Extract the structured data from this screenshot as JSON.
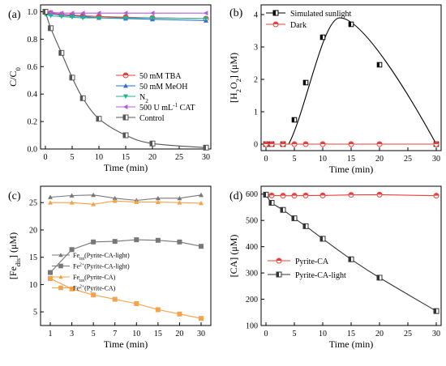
{
  "chart_data": [
    {
      "panel": "(a)",
      "type": "line",
      "xlabel": "Time (min)",
      "ylabel_parts": [
        "C/C",
        "0"
      ],
      "xlim": [
        0,
        30
      ],
      "ylim": [
        0,
        1.05
      ],
      "xticks": [
        0,
        5,
        10,
        15,
        20,
        25,
        30
      ],
      "yticks": [
        0.0,
        0.2,
        0.4,
        0.6,
        0.8,
        1.0
      ],
      "legend_position": "center-right",
      "series": [
        {
          "name": "50 mM TBA",
          "color": "#e8403a",
          "marker": "circle-half",
          "x": [
            0,
            1,
            3,
            5,
            7,
            10,
            15,
            20,
            30
          ],
          "y": [
            1.0,
            0.99,
            0.98,
            0.975,
            0.97,
            0.965,
            0.96,
            0.955,
            0.95
          ]
        },
        {
          "name": "50 mM MeOH",
          "color": "#2f6fd1",
          "marker": "triangle-up",
          "x": [
            0,
            1,
            3,
            5,
            7,
            10,
            15,
            20,
            30
          ],
          "y": [
            1.0,
            0.985,
            0.975,
            0.97,
            0.965,
            0.955,
            0.95,
            0.945,
            0.935
          ]
        },
        {
          "name": "N2",
          "name_parts": [
            "N",
            "2"
          ],
          "color": "#1fb58a",
          "marker": "triangle-down",
          "x": [
            0,
            1,
            3,
            5,
            7,
            10,
            15,
            20,
            30
          ],
          "y": [
            0.98,
            0.97,
            0.965,
            0.96,
            0.955,
            0.955,
            0.955,
            0.955,
            0.95
          ]
        },
        {
          "name": "500 U mL-1 CAT",
          "name_parts": [
            "500 U mL",
            "-1",
            " CAT"
          ],
          "color": "#b45ce0",
          "marker": "triangle-left",
          "x": [
            0,
            1,
            3,
            5,
            7,
            10,
            15,
            20,
            30
          ],
          "y": [
            1.0,
            0.995,
            0.99,
            0.99,
            0.99,
            0.99,
            0.99,
            0.99,
            0.99
          ]
        },
        {
          "name": "Control",
          "color": "#555555",
          "marker": "square-half",
          "x": [
            0,
            1,
            3,
            5,
            7,
            10,
            15,
            20,
            30
          ],
          "y": [
            1.0,
            0.88,
            0.7,
            0.52,
            0.37,
            0.22,
            0.1,
            0.04,
            0.01
          ]
        }
      ]
    },
    {
      "panel": "(b)",
      "type": "line",
      "xlabel": "Time (min)",
      "ylabel_parts": [
        "[H",
        "2",
        "O",
        "2",
        "] (μM)"
      ],
      "xlim": [
        0,
        30
      ],
      "ylim": [
        -0.2,
        4.3
      ],
      "xticks": [
        0,
        5,
        10,
        15,
        20,
        25,
        30
      ],
      "yticks": [
        0,
        1,
        2,
        3,
        4
      ],
      "legend_position": "top-left",
      "series": [
        {
          "name": "Simulated sunlight",
          "color": "#000000",
          "marker": "square-half",
          "x": [
            0,
            1,
            3,
            5,
            7,
            10,
            15,
            20,
            30
          ],
          "y": [
            0,
            0,
            0,
            0.75,
            1.9,
            3.3,
            3.7,
            2.45,
            0
          ]
        },
        {
          "name": "Dark",
          "color": "#e8403a",
          "marker": "circle-half",
          "x": [
            0,
            1,
            3,
            5,
            7,
            10,
            15,
            20,
            30
          ],
          "y": [
            0,
            0,
            0,
            0,
            0,
            0,
            0,
            0,
            0
          ]
        }
      ]
    },
    {
      "panel": "(c)",
      "type": "line",
      "xlabel": "Time (min)",
      "ylabel_parts": [
        "[Fe",
        "dis",
        "] (μM)"
      ],
      "categories": [
        "1",
        "3",
        "5",
        "7",
        "10",
        "15",
        "20",
        "30"
      ],
      "ylim": [
        2.5,
        28
      ],
      "yticks": [
        5,
        10,
        15,
        20,
        25
      ],
      "legend_position": "center-right",
      "series": [
        {
          "name": "Fetot(Pyrite-CA-light)",
          "name_parts": [
            "Fe",
            "tot",
            "(Pyrite-CA-light)"
          ],
          "color": "#777777",
          "marker": "triangle-up",
          "values": [
            26.0,
            26.3,
            26.4,
            25.8,
            25.4,
            25.8,
            25.8,
            26.4
          ]
        },
        {
          "name": "Fe2+(Pyrite-CA-light)",
          "name_parts": [
            "Fe",
            "2+",
            "(Pyrite-CA-light)"
          ],
          "color": "#777777",
          "marker": "square",
          "values": [
            12.2,
            16.4,
            17.8,
            17.9,
            18.2,
            18.1,
            17.8,
            17.0
          ]
        },
        {
          "name": "Fetot(Pyrite-CA)",
          "name_parts": [
            "Fe",
            "tot",
            "(Pyrite-CA)"
          ],
          "color": "#f5a24a",
          "marker": "triangle-up",
          "values": [
            25.0,
            25.0,
            24.7,
            25.3,
            25.1,
            25.1,
            25.0,
            24.9
          ]
        },
        {
          "name": "Fe2+(Pyrite-CA)",
          "name_parts": [
            "Fe",
            "2+",
            "(Pyrite-CA)"
          ],
          "color": "#f5a24a",
          "marker": "square",
          "values": [
            11.1,
            9.2,
            8.1,
            7.3,
            6.5,
            5.4,
            4.6,
            3.8
          ]
        }
      ]
    },
    {
      "panel": "(d)",
      "type": "line",
      "xlabel": "Time (min)",
      "ylabel": "[CA] (μM)",
      "xlim": [
        0,
        30
      ],
      "ylim": [
        100,
        630
      ],
      "xticks": [
        0,
        5,
        10,
        15,
        20,
        25,
        30
      ],
      "yticks": [
        100,
        200,
        300,
        400,
        500,
        600
      ],
      "legend_position": "center-left",
      "series": [
        {
          "name": "Pyrite-CA",
          "color": "#e8403a",
          "marker": "circle-half",
          "x": [
            0,
            1,
            3,
            5,
            7,
            10,
            15,
            20,
            30
          ],
          "y": [
            598,
            595,
            594,
            594,
            595,
            595,
            597,
            598,
            594
          ]
        },
        {
          "name": "Pyrite-CA-light",
          "color": "#333333",
          "marker": "square-half",
          "x": [
            0,
            1,
            3,
            5,
            7,
            10,
            15,
            20,
            30
          ],
          "y": [
            598,
            567,
            540,
            508,
            478,
            430,
            352,
            282,
            155
          ]
        }
      ]
    }
  ]
}
